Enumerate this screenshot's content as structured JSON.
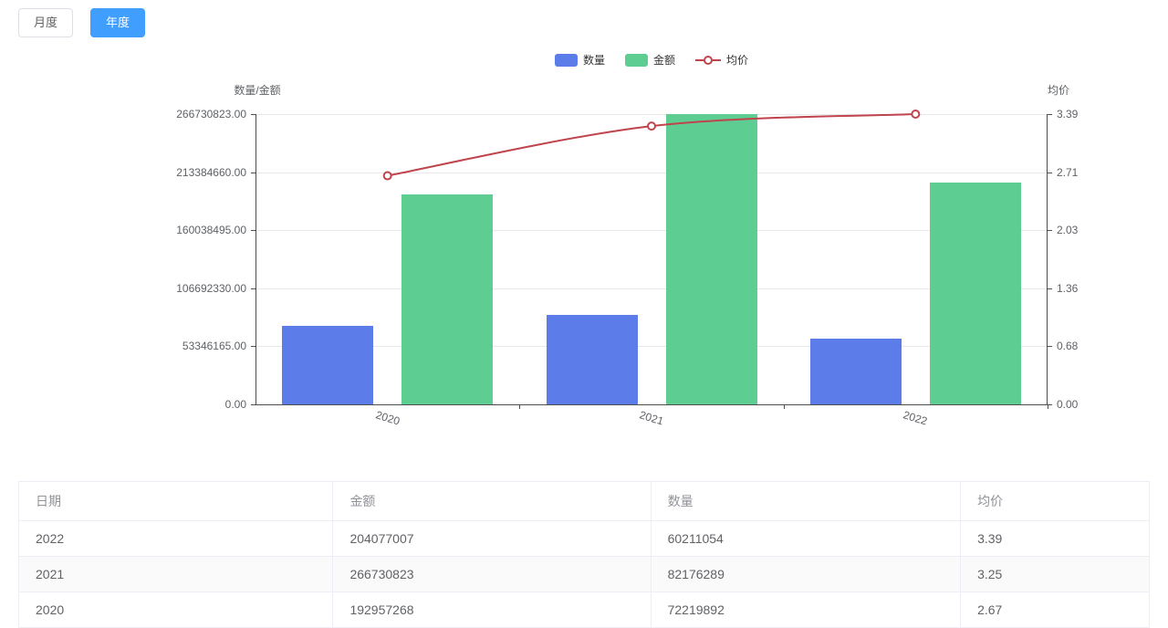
{
  "toolbar": {
    "monthly_label": "月度",
    "yearly_label": "年度",
    "active": "年度"
  },
  "chart_data": {
    "type": "bar+line",
    "categories": [
      "2020",
      "2021",
      "2022"
    ],
    "series": [
      {
        "name": "数量",
        "type": "bar",
        "axis": "left",
        "color": "#5b7ce9",
        "values": [
          72219892,
          82176289,
          60211054
        ]
      },
      {
        "name": "金额",
        "type": "bar",
        "axis": "left",
        "color": "#5ecd92",
        "values": [
          192957268,
          266730823,
          204077007
        ]
      },
      {
        "name": "均价",
        "type": "line",
        "axis": "right",
        "color": "#bf444c",
        "values": [
          2.67,
          3.25,
          3.39
        ]
      }
    ],
    "left_axis": {
      "name": "数量/金额",
      "max": 266730823,
      "min": 0,
      "tick_labels_top_to_bottom": [
        "266730823.00",
        "213384660.00",
        "160038495.00",
        "106692330.00",
        "53346165.00",
        "0.00"
      ]
    },
    "right_axis": {
      "name": "均价",
      "max": 3.39,
      "min": 0,
      "tick_labels_top_to_bottom": [
        "3.39",
        "2.71",
        "2.03",
        "1.36",
        "0.68",
        "0.00"
      ]
    },
    "legend_position": "top-center",
    "grid": true
  },
  "table": {
    "headers": [
      "日期",
      "金额",
      "数量",
      "均价"
    ],
    "rows": [
      [
        "2022",
        "204077007",
        "60211054",
        "3.39"
      ],
      [
        "2021",
        "266730823",
        "82176289",
        "3.25"
      ],
      [
        "2020",
        "192957268",
        "72219892",
        "2.67"
      ]
    ]
  },
  "colors": {
    "primary_button": "#409eff",
    "bar_quantity": "#5b7ce9",
    "bar_amount": "#5ecd92",
    "line_avg_price": "#bf444c",
    "axis_line": "#4e4e4e",
    "gridline": "#e8e8e8",
    "table_border": "#ebeef5",
    "table_header_text": "#909399",
    "table_cell_text": "#606266",
    "stripe_row": "#fafafa"
  }
}
